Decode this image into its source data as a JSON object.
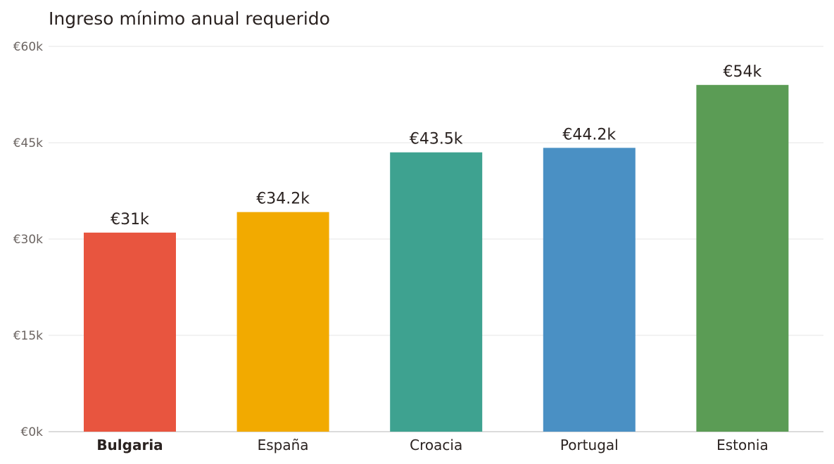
{
  "chart_data": {
    "type": "bar",
    "title": "Ingreso mínimo anual requerido",
    "categories": [
      "Bulgaria",
      "España",
      "Croacia",
      "Portugal",
      "Estonia"
    ],
    "values": [
      31000,
      34200,
      43500,
      44200,
      54000
    ],
    "value_labels": [
      "€31k",
      "€34.2k",
      "€43.5k",
      "€44.2k",
      "€54k"
    ],
    "highlighted_category": "Bulgaria",
    "colors": [
      "#e8553f",
      "#f2aa00",
      "#3ea290",
      "#4a90c4",
      "#5b9c55"
    ],
    "yticks": [
      0,
      15000,
      30000,
      45000,
      60000
    ],
    "ytick_labels": [
      "€0k",
      "€15k",
      "€30k",
      "€45k",
      "€60k"
    ],
    "ylim": [
      0,
      60000
    ],
    "grid": true,
    "xlabel": "",
    "ylabel": ""
  }
}
